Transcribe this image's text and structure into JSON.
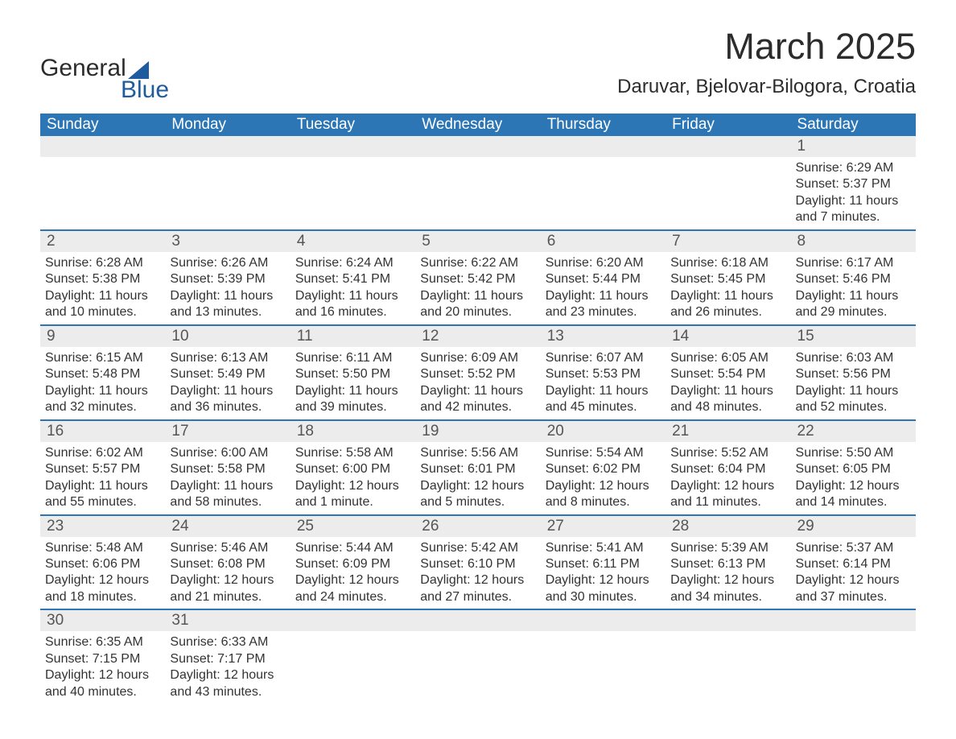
{
  "logo": {
    "line1": "General",
    "line2": "Blue"
  },
  "header": {
    "month_title": "March 2025",
    "location": "Daruvar, Bjelovar-Bilogora, Croatia"
  },
  "columns": [
    "Sunday",
    "Monday",
    "Tuesday",
    "Wednesday",
    "Thursday",
    "Friday",
    "Saturday"
  ],
  "colors": {
    "header_bg": "#2d76b6",
    "header_text": "#ffffff",
    "rule": "#2d76b6",
    "daynum_bg": "#ececec",
    "body_text": "#333333",
    "logo_blue": "#1f5c9e",
    "title_text": "#2c2c2c",
    "page_bg": "#ffffff"
  },
  "typography": {
    "month_title_pt": 45,
    "location_pt": 24,
    "day_header_pt": 19,
    "daynum_pt": 19,
    "body_pt": 16,
    "logo_pt": 30
  },
  "layout": {
    "columns": 7,
    "rows": 6,
    "first_day_column_index": 6
  },
  "weeks": [
    [
      null,
      null,
      null,
      null,
      null,
      null,
      {
        "n": "1",
        "sunrise": "Sunrise: 6:29 AM",
        "sunset": "Sunset: 5:37 PM",
        "dl1": "Daylight: 11 hours",
        "dl2": "and 7 minutes."
      }
    ],
    [
      {
        "n": "2",
        "sunrise": "Sunrise: 6:28 AM",
        "sunset": "Sunset: 5:38 PM",
        "dl1": "Daylight: 11 hours",
        "dl2": "and 10 minutes."
      },
      {
        "n": "3",
        "sunrise": "Sunrise: 6:26 AM",
        "sunset": "Sunset: 5:39 PM",
        "dl1": "Daylight: 11 hours",
        "dl2": "and 13 minutes."
      },
      {
        "n": "4",
        "sunrise": "Sunrise: 6:24 AM",
        "sunset": "Sunset: 5:41 PM",
        "dl1": "Daylight: 11 hours",
        "dl2": "and 16 minutes."
      },
      {
        "n": "5",
        "sunrise": "Sunrise: 6:22 AM",
        "sunset": "Sunset: 5:42 PM",
        "dl1": "Daylight: 11 hours",
        "dl2": "and 20 minutes."
      },
      {
        "n": "6",
        "sunrise": "Sunrise: 6:20 AM",
        "sunset": "Sunset: 5:44 PM",
        "dl1": "Daylight: 11 hours",
        "dl2": "and 23 minutes."
      },
      {
        "n": "7",
        "sunrise": "Sunrise: 6:18 AM",
        "sunset": "Sunset: 5:45 PM",
        "dl1": "Daylight: 11 hours",
        "dl2": "and 26 minutes."
      },
      {
        "n": "8",
        "sunrise": "Sunrise: 6:17 AM",
        "sunset": "Sunset: 5:46 PM",
        "dl1": "Daylight: 11 hours",
        "dl2": "and 29 minutes."
      }
    ],
    [
      {
        "n": "9",
        "sunrise": "Sunrise: 6:15 AM",
        "sunset": "Sunset: 5:48 PM",
        "dl1": "Daylight: 11 hours",
        "dl2": "and 32 minutes."
      },
      {
        "n": "10",
        "sunrise": "Sunrise: 6:13 AM",
        "sunset": "Sunset: 5:49 PM",
        "dl1": "Daylight: 11 hours",
        "dl2": "and 36 minutes."
      },
      {
        "n": "11",
        "sunrise": "Sunrise: 6:11 AM",
        "sunset": "Sunset: 5:50 PM",
        "dl1": "Daylight: 11 hours",
        "dl2": "and 39 minutes."
      },
      {
        "n": "12",
        "sunrise": "Sunrise: 6:09 AM",
        "sunset": "Sunset: 5:52 PM",
        "dl1": "Daylight: 11 hours",
        "dl2": "and 42 minutes."
      },
      {
        "n": "13",
        "sunrise": "Sunrise: 6:07 AM",
        "sunset": "Sunset: 5:53 PM",
        "dl1": "Daylight: 11 hours",
        "dl2": "and 45 minutes."
      },
      {
        "n": "14",
        "sunrise": "Sunrise: 6:05 AM",
        "sunset": "Sunset: 5:54 PM",
        "dl1": "Daylight: 11 hours",
        "dl2": "and 48 minutes."
      },
      {
        "n": "15",
        "sunrise": "Sunrise: 6:03 AM",
        "sunset": "Sunset: 5:56 PM",
        "dl1": "Daylight: 11 hours",
        "dl2": "and 52 minutes."
      }
    ],
    [
      {
        "n": "16",
        "sunrise": "Sunrise: 6:02 AM",
        "sunset": "Sunset: 5:57 PM",
        "dl1": "Daylight: 11 hours",
        "dl2": "and 55 minutes."
      },
      {
        "n": "17",
        "sunrise": "Sunrise: 6:00 AM",
        "sunset": "Sunset: 5:58 PM",
        "dl1": "Daylight: 11 hours",
        "dl2": "and 58 minutes."
      },
      {
        "n": "18",
        "sunrise": "Sunrise: 5:58 AM",
        "sunset": "Sunset: 6:00 PM",
        "dl1": "Daylight: 12 hours",
        "dl2": "and 1 minute."
      },
      {
        "n": "19",
        "sunrise": "Sunrise: 5:56 AM",
        "sunset": "Sunset: 6:01 PM",
        "dl1": "Daylight: 12 hours",
        "dl2": "and 5 minutes."
      },
      {
        "n": "20",
        "sunrise": "Sunrise: 5:54 AM",
        "sunset": "Sunset: 6:02 PM",
        "dl1": "Daylight: 12 hours",
        "dl2": "and 8 minutes."
      },
      {
        "n": "21",
        "sunrise": "Sunrise: 5:52 AM",
        "sunset": "Sunset: 6:04 PM",
        "dl1": "Daylight: 12 hours",
        "dl2": "and 11 minutes."
      },
      {
        "n": "22",
        "sunrise": "Sunrise: 5:50 AM",
        "sunset": "Sunset: 6:05 PM",
        "dl1": "Daylight: 12 hours",
        "dl2": "and 14 minutes."
      }
    ],
    [
      {
        "n": "23",
        "sunrise": "Sunrise: 5:48 AM",
        "sunset": "Sunset: 6:06 PM",
        "dl1": "Daylight: 12 hours",
        "dl2": "and 18 minutes."
      },
      {
        "n": "24",
        "sunrise": "Sunrise: 5:46 AM",
        "sunset": "Sunset: 6:08 PM",
        "dl1": "Daylight: 12 hours",
        "dl2": "and 21 minutes."
      },
      {
        "n": "25",
        "sunrise": "Sunrise: 5:44 AM",
        "sunset": "Sunset: 6:09 PM",
        "dl1": "Daylight: 12 hours",
        "dl2": "and 24 minutes."
      },
      {
        "n": "26",
        "sunrise": "Sunrise: 5:42 AM",
        "sunset": "Sunset: 6:10 PM",
        "dl1": "Daylight: 12 hours",
        "dl2": "and 27 minutes."
      },
      {
        "n": "27",
        "sunrise": "Sunrise: 5:41 AM",
        "sunset": "Sunset: 6:11 PM",
        "dl1": "Daylight: 12 hours",
        "dl2": "and 30 minutes."
      },
      {
        "n": "28",
        "sunrise": "Sunrise: 5:39 AM",
        "sunset": "Sunset: 6:13 PM",
        "dl1": "Daylight: 12 hours",
        "dl2": "and 34 minutes."
      },
      {
        "n": "29",
        "sunrise": "Sunrise: 5:37 AM",
        "sunset": "Sunset: 6:14 PM",
        "dl1": "Daylight: 12 hours",
        "dl2": "and 37 minutes."
      }
    ],
    [
      {
        "n": "30",
        "sunrise": "Sunrise: 6:35 AM",
        "sunset": "Sunset: 7:15 PM",
        "dl1": "Daylight: 12 hours",
        "dl2": "and 40 minutes."
      },
      {
        "n": "31",
        "sunrise": "Sunrise: 6:33 AM",
        "sunset": "Sunset: 7:17 PM",
        "dl1": "Daylight: 12 hours",
        "dl2": "and 43 minutes."
      },
      null,
      null,
      null,
      null,
      null
    ]
  ]
}
